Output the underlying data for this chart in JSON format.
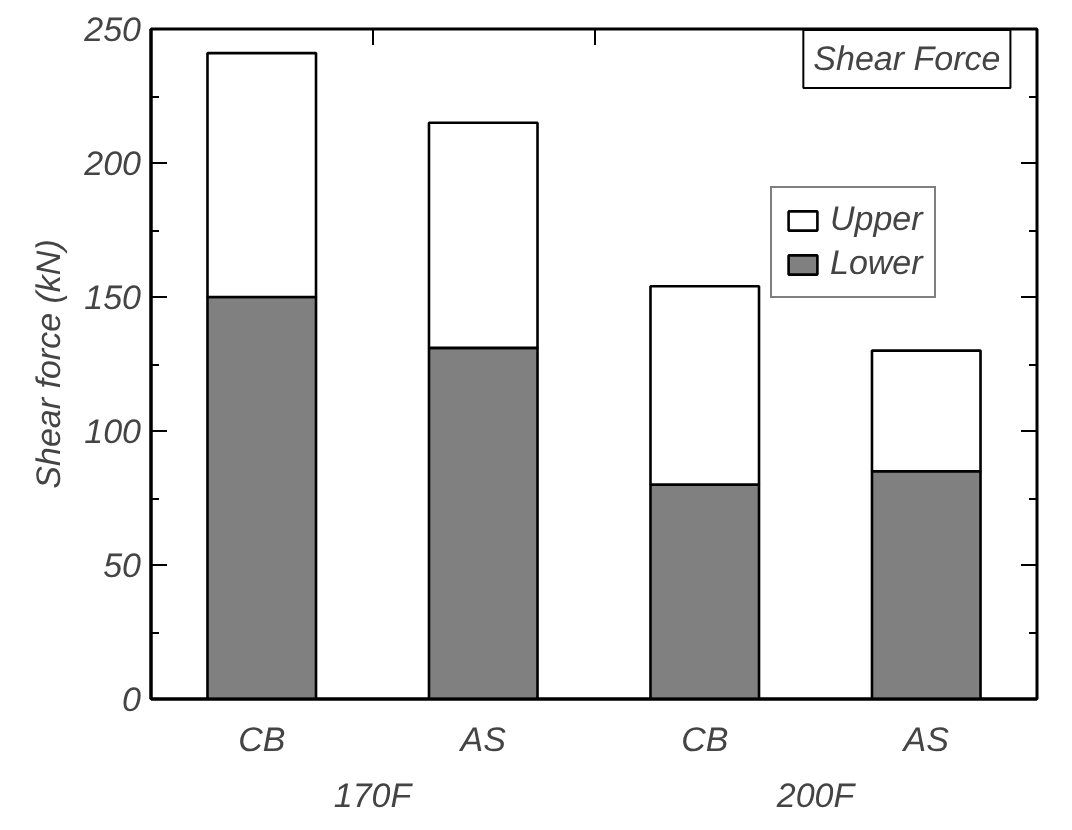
{
  "chart_data": {
    "type": "bar",
    "title": "Shear Force",
    "ylabel": "Shear force (kN)",
    "categories": [
      "CB",
      "AS",
      "CB",
      "AS"
    ],
    "stacked": true,
    "series": [
      {
        "name": "Lower",
        "color": "#808080",
        "values": [
          150,
          131,
          80,
          85
        ]
      },
      {
        "name": "Upper",
        "color": "#ffffff",
        "values": [
          91,
          84,
          74,
          45
        ]
      }
    ],
    "ylim": [
      0,
      250
    ],
    "yticks": [
      0,
      50,
      100,
      150,
      200,
      250
    ],
    "grid": false,
    "legend": "top right",
    "annotations": [
      "170F",
      "200F"
    ]
  }
}
